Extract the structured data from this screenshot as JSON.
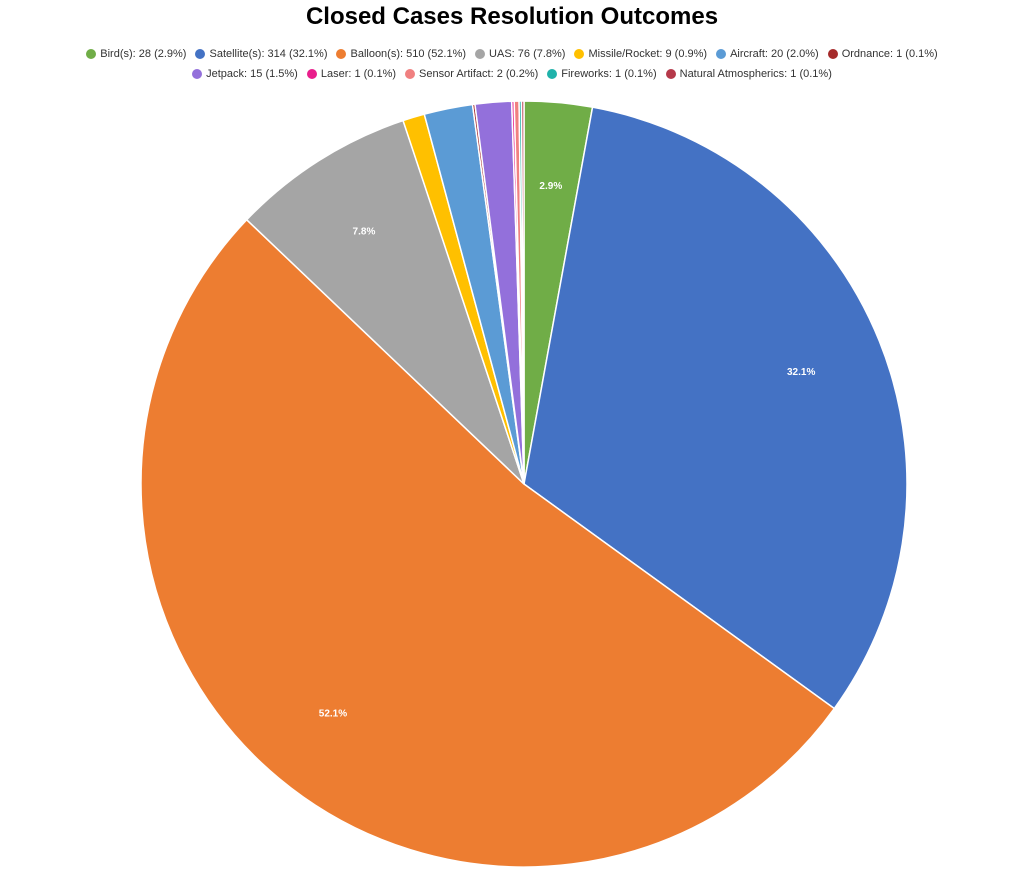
{
  "chart_data": {
    "type": "pie",
    "title": "Closed Cases Resolution Outcomes",
    "categories": [
      "Bird(s): 28 (2.9%)",
      "Satellite(s): 314 (32.1%)",
      "Balloon(s): 510 (52.1%)",
      "UAS: 76 (7.8%)",
      "Missile/Rocket: 9 (0.9%)",
      "Aircraft: 20 (2.0%)",
      "Ordnance: 1 (0.1%)",
      "Jetpack: 15 (1.5%)",
      "Laser: 1 (0.1%)",
      "Sensor Artifact: 2 (0.2%)",
      "Fireworks: 1 (0.1%)",
      "Natural Atmospherics: 1 (0.1%)"
    ],
    "values": [
      28,
      314,
      510,
      76,
      9,
      20,
      1,
      15,
      1,
      2,
      1,
      1
    ],
    "value_labels": [
      "2.9%",
      "32.1%",
      "52.1%",
      "7.8%",
      null,
      null,
      null,
      null,
      null,
      null,
      null,
      null
    ],
    "colors": [
      "#70ad47",
      "#4472c4",
      "#ed7d31",
      "#a5a5a5",
      "#ffc000",
      "#5b9bd5",
      "#a52a2a",
      "#9370db",
      "#e91e8c",
      "#f08080",
      "#20b2aa",
      "#b5394a"
    ],
    "legend": "top"
  }
}
